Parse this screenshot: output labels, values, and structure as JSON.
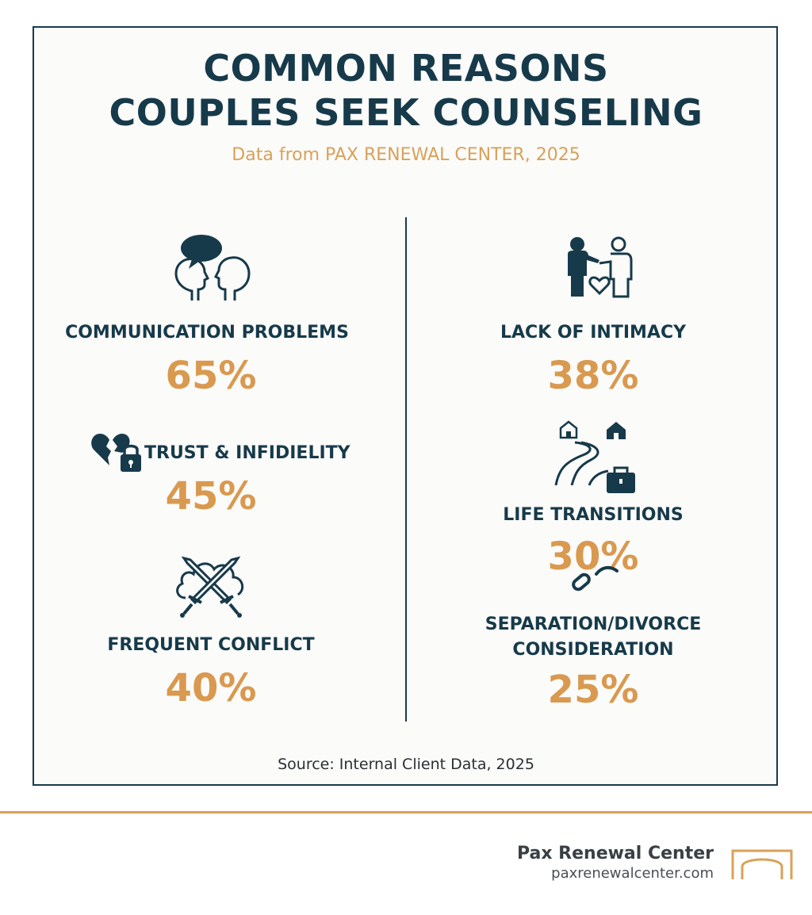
{
  "header": {
    "title_line1": "COMMON REASONS",
    "title_line2": "COUPLES SEEK COUNSELING",
    "subtitle": "Data from PAX RENEWAL CENTER, 2025"
  },
  "colors": {
    "navy": "#173a4a",
    "gold": "#d9994f"
  },
  "reasons": [
    {
      "label": "COMMUNICATION PROBLEMS",
      "percent": "65%",
      "icon": "speech-heads-icon"
    },
    {
      "label": "TRUST & INFIDIELITY",
      "percent": "45%",
      "icon": "broken-heart-lock-icon"
    },
    {
      "label": "FREQUENT CONFLICT",
      "percent": "40%",
      "icon": "crossed-swords-icon"
    },
    {
      "label": "LACK OF INTIMACY",
      "percent": "38%",
      "icon": "couple-heart-icon"
    },
    {
      "label": "LIFE TRANSITIONS",
      "percent": "30%",
      "icon": "road-houses-briefcase-icon"
    },
    {
      "label_line1": "SEPARATION/DIVORCE",
      "label_line2": "CONSIDERATION",
      "percent": "25%",
      "icon": "broken-chain-icon"
    }
  ],
  "source": "Source: Internal Client Data, 2025",
  "footer": {
    "brand_name": "Pax Renewal Center",
    "brand_url": "paxrenewalcenter.com",
    "logo_icon": "arch-logo-icon"
  }
}
